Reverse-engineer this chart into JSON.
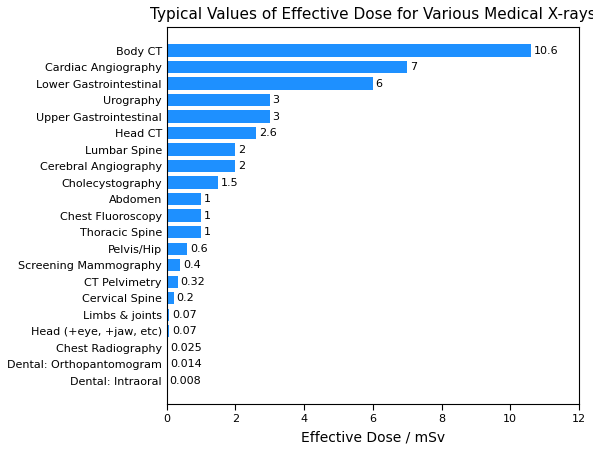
{
  "title": "Typical Values of Effective Dose for Various Medical X-rays",
  "xlabel": "Effective Dose / mSv",
  "categories": [
    "Dental: Intraoral",
    "Dental: Orthopantomogram",
    "Chest Radiography",
    "Head (+eye, +jaw, etc)",
    "Limbs & joints",
    "Cervical Spine",
    "CT Pelvimetry",
    "Screening Mammography",
    "Pelvis/Hip",
    "Thoracic Spine",
    "Chest Fluoroscopy",
    "Abdomen",
    "Cholecystography",
    "Cerebral Angiography",
    "Lumbar Spine",
    "Head CT",
    "Upper Gastrointestinal",
    "Urography",
    "Lower Gastrointestinal",
    "Cardiac Angiography",
    "Body CT"
  ],
  "values": [
    0.008,
    0.014,
    0.025,
    0.07,
    0.07,
    0.2,
    0.32,
    0.4,
    0.6,
    1,
    1,
    1,
    1.5,
    2,
    2,
    2.6,
    3,
    3,
    6,
    7,
    10.6
  ],
  "labels": [
    "0.008",
    "0.014",
    "0.025",
    "0.07",
    "0.07",
    "0.2",
    "0.32",
    "0.4",
    "0.6",
    "1",
    "1",
    "1",
    "1.5",
    "2",
    "2",
    "2.6",
    "3",
    "3",
    "6",
    "7",
    "10.6"
  ],
  "bar_color": "#1E90FF",
  "xlim": [
    0,
    12
  ],
  "xticks": [
    0,
    2,
    4,
    6,
    8,
    10,
    12
  ],
  "title_fontsize": 11,
  "label_fontsize": 8,
  "tick_fontsize": 8,
  "xlabel_fontsize": 10,
  "figsize": [
    5.93,
    4.51
  ],
  "dpi": 100
}
